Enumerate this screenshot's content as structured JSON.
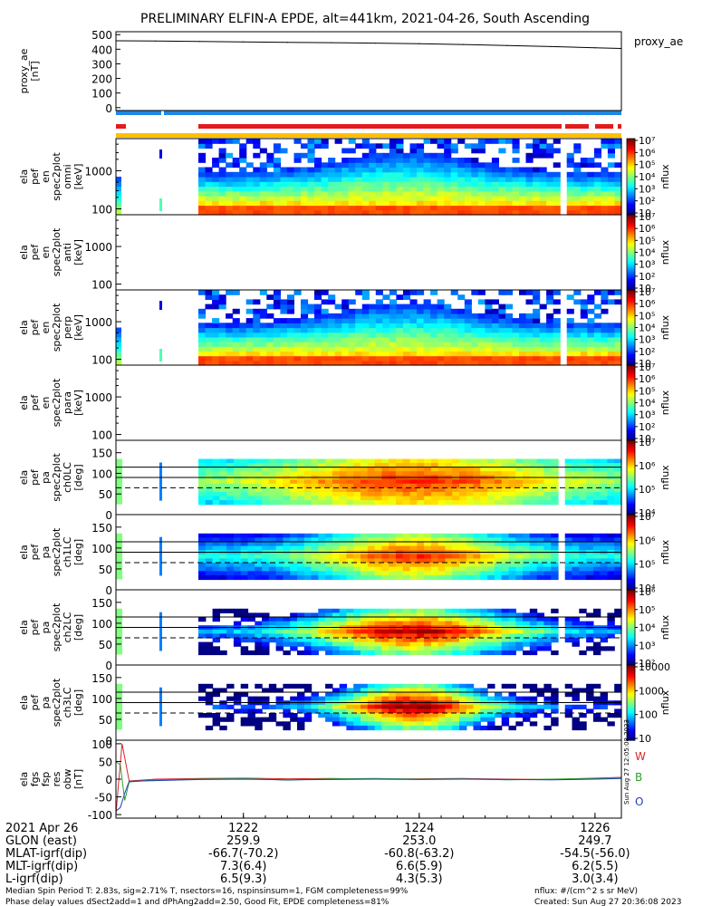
{
  "title": "PRELIMINARY ELFIN-A EPDE, alt=441km, 2021-04-26, South Ascending",
  "colors": {
    "blue_bar": "#1e88e5",
    "red_bar": "#e41a1c",
    "yellow_bar": "#ffc000",
    "black": "#000000"
  },
  "chart_data": [
    {
      "type": "line",
      "panel": "proxy_ae",
      "ylabel": "proxy_ae\n[nT]",
      "legend": "proxy_ae",
      "ylim": [
        -20,
        520
      ],
      "yticks": [
        0,
        100,
        200,
        300,
        400,
        500
      ],
      "x": [
        1220.55,
        1221.0,
        1221.5,
        1222.0,
        1222.5,
        1223.0,
        1223.5,
        1224.0,
        1224.5,
        1225.0,
        1225.5,
        1226.0,
        1226.3
      ],
      "values": [
        458,
        456,
        453,
        450,
        447,
        445,
        442,
        438,
        432,
        425,
        418,
        410,
        405
      ]
    },
    {
      "type": "heatmap",
      "panel": "ela_pef_en_spec2plot_omni",
      "ylabel": "ela\npef\nen\nspec2plot\nomni\n[keV]",
      "yscale": "log",
      "ylim": [
        70,
        7000
      ],
      "yticks": [
        100,
        1000
      ],
      "colorbar": {
        "label": "nflux",
        "scale": "log",
        "ticks": [
          "10",
          "10²",
          "10³",
          "10⁴",
          "10⁵",
          "10⁶",
          "10⁷"
        ]
      }
    },
    {
      "type": "heatmap",
      "panel": "ela_pef_en_spec2plot_anti",
      "ylabel": "ela\npef\nen\nspec2plot\nanti\n[keV]",
      "yscale": "log",
      "ylim": [
        70,
        7000
      ],
      "yticks": [
        100,
        1000
      ],
      "colorbar": {
        "label": "nflux",
        "scale": "log",
        "ticks": [
          "10",
          "10²",
          "10³",
          "10⁴",
          "10⁵",
          "10⁶",
          "10⁷"
        ]
      }
    },
    {
      "type": "heatmap",
      "panel": "ela_pef_en_spec2plot_perp",
      "ylabel": "ela\npef\nen\nspec2plot\nperp\n[keV]",
      "yscale": "log",
      "ylim": [
        70,
        7000
      ],
      "yticks": [
        100,
        1000
      ],
      "colorbar": {
        "label": "nflux",
        "scale": "log",
        "ticks": [
          "10",
          "10²",
          "10³",
          "10⁴",
          "10⁵",
          "10⁶",
          "10⁷"
        ]
      }
    },
    {
      "type": "heatmap",
      "panel": "ela_pef_en_spec2plot_para",
      "ylabel": "ela\npef\nen\nspec2plot\npara\n[keV]",
      "yscale": "log",
      "ylim": [
        70,
        7000
      ],
      "yticks": [
        100,
        1000
      ],
      "colorbar": {
        "label": "nflux",
        "scale": "log",
        "ticks": [
          "10",
          "10²",
          "10³",
          "10⁴",
          "10⁵",
          "10⁶",
          "10⁷"
        ]
      }
    },
    {
      "type": "heatmap",
      "panel": "ela_pef_pa_spec2plot_ch0LC",
      "ylabel": "ela\npef\npa\nspec2plot\nch0LC\n[deg]",
      "ylim": [
        0,
        180
      ],
      "yticks": [
        0,
        50,
        100,
        150
      ],
      "colorbar": {
        "label": "nflux",
        "scale": "log",
        "ticks": [
          "10⁴",
          "10⁵",
          "10⁶",
          "10⁷"
        ]
      }
    },
    {
      "type": "heatmap",
      "panel": "ela_pef_pa_spec2plot_ch1LC",
      "ylabel": "ela\npef\npa\nspec2plot\nch1LC\n[deg]",
      "ylim": [
        0,
        180
      ],
      "yticks": [
        0,
        50,
        100,
        150
      ],
      "colorbar": {
        "label": "nflux",
        "scale": "log",
        "ticks": [
          "10⁴",
          "10⁵",
          "10⁶",
          "10⁷"
        ]
      }
    },
    {
      "type": "heatmap",
      "panel": "ela_pef_pa_spec2plot_ch2LC",
      "ylabel": "ela\npef\npa\nspec2plot\nch2LC\n[deg]",
      "ylim": [
        0,
        180
      ],
      "yticks": [
        0,
        50,
        100,
        150
      ],
      "colorbar": {
        "label": "nflux",
        "scale": "log",
        "ticks": [
          "10²",
          "10³",
          "10⁴",
          "10⁵",
          "10⁶"
        ]
      }
    },
    {
      "type": "heatmap",
      "panel": "ela_pef_pa_spec2plot_ch3LC",
      "ylabel": "ela\npef\npa\nspec2plot\nch3LC\n[deg]",
      "ylim": [
        0,
        180
      ],
      "yticks": [
        0,
        50,
        100,
        150
      ],
      "colorbar": {
        "label": "nflux",
        "scale": "log",
        "ticks": [
          "10",
          "100",
          "1000",
          "10000"
        ]
      }
    },
    {
      "type": "line",
      "panel": "ela_fgs_fsp_res_obw",
      "ylabel": "ela\nfgs\nfsp\nres\nobw\n[nT]",
      "ylim": [
        -110,
        110
      ],
      "yticks": [
        -100,
        -50,
        0,
        50,
        100
      ],
      "legend_entries": [
        "W",
        "B",
        "O"
      ],
      "side_label": "Sun Aug 27 12:05:08 2023",
      "series": [
        {
          "name": "W",
          "x": [
            1220.55,
            1220.58,
            1220.62,
            1220.7,
            1221.0,
            1221.5,
            1222.0,
            1222.5,
            1223.0,
            1223.5,
            1224.0,
            1224.5,
            1225.0,
            1225.5,
            1226.0,
            1226.3
          ],
          "values": [
            -100,
            -10,
            100,
            -5,
            0,
            2,
            3,
            1,
            2,
            0,
            1,
            2,
            0,
            -1,
            3,
            5
          ]
        },
        {
          "name": "B",
          "x": [
            1220.55,
            1220.6,
            1220.65,
            1220.7,
            1221.0,
            1221.5,
            1222.0,
            1222.5,
            1223.0,
            1223.5,
            1224.0,
            1224.5,
            1225.0,
            1225.5,
            1226.0,
            1226.3
          ],
          "values": [
            50,
            40,
            -60,
            -8,
            -2,
            0,
            2,
            -3,
            1,
            2,
            0,
            1,
            -2,
            0,
            2,
            4
          ]
        },
        {
          "name": "O",
          "x": [
            1220.55,
            1220.6,
            1220.65,
            1220.7,
            1221.0,
            1221.5,
            1222.0,
            1222.5,
            1223.0,
            1223.5,
            1224.0,
            1224.5,
            1225.0,
            1225.5,
            1226.0,
            1226.3
          ],
          "values": [
            -90,
            -80,
            -40,
            -6,
            -4,
            -1,
            0,
            -2,
            -1,
            0,
            -1,
            0,
            -1,
            -2,
            0,
            2
          ]
        }
      ]
    }
  ],
  "xaxis": {
    "xlim": [
      1220.55,
      1226.3
    ],
    "ticks": [
      1222,
      1224,
      1226
    ],
    "date_label": "2021 Apr 26",
    "rows": [
      {
        "label": "GLON (east)",
        "values": [
          "259.9",
          "253.0",
          "249.7"
        ]
      },
      {
        "label": "MLAT-igrf(dip)",
        "values": [
          "-66.7(-70.2)",
          "-60.8(-63.2)",
          "-54.5(-56.0)"
        ]
      },
      {
        "label": "MLT-igrf(dip)",
        "values": [
          "7.3(6.4)",
          "6.6(5.9)",
          "6.2(5.5)"
        ]
      },
      {
        "label": "L-igrf(dip)",
        "values": [
          "6.5(9.3)",
          "4.3(5.3)",
          "3.0(3.4)"
        ]
      }
    ]
  },
  "footer": {
    "left_line1": "Median Spin Period T: 2.83s, sig=2.71% T, nsectors=16, nspinsinsum=1, FGM completeness=99%",
    "left_line2": "Phase delay values dSect2add=1 and dPhAng2add=2.50, Good Fit, EPDE completeness=81%",
    "right_line1": "nflux: #/(cm^2 s sr MeV)",
    "right_line2": "Created: Sun Aug 27 20:36:08 2023"
  }
}
